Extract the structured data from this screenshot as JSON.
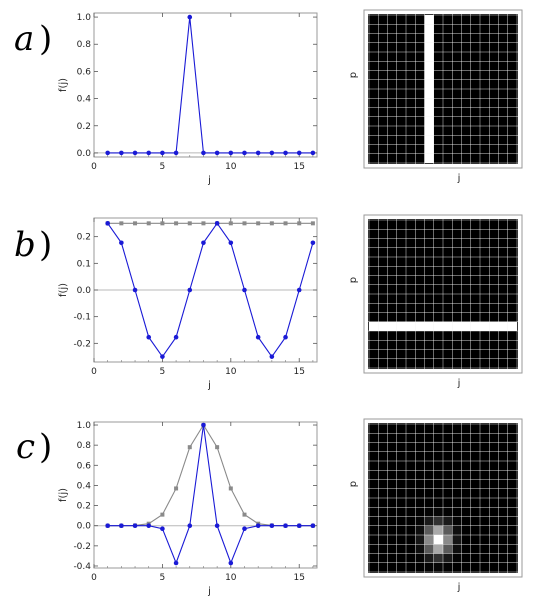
{
  "panels": [
    {
      "letter": "a",
      "paren": ")"
    },
    {
      "letter": "b",
      "paren": ")"
    },
    {
      "letter": "c",
      "paren": ")"
    }
  ],
  "colors": {
    "blue": "#1a1ad6",
    "gray": "#8a8a8a",
    "zero_line": "#b8b8b8",
    "frame": "#9a9a9a",
    "matrix_bg": "#000000",
    "matrix_grid": "#ffffff"
  },
  "chart_data": [
    {
      "type": "line",
      "panel": "a",
      "xlabel": "j",
      "ylabel": "f(j)",
      "xlim": [
        0,
        16.3
      ],
      "ylim": [
        -0.03,
        1.03
      ],
      "xticks": [
        0,
        5,
        10,
        15
      ],
      "yticks": [
        0.0,
        0.2,
        0.4,
        0.6,
        0.8,
        1.0
      ],
      "ytick_labels": [
        "0.0",
        "0.2",
        "0.4",
        "0.6",
        "0.8",
        "1.0"
      ],
      "series": [
        {
          "color": "blue",
          "x": [
            1,
            2,
            3,
            4,
            5,
            6,
            7,
            8,
            9,
            10,
            11,
            12,
            13,
            14,
            15,
            16
          ],
          "y": [
            0,
            0,
            0,
            0,
            0,
            0,
            1,
            0,
            0,
            0,
            0,
            0,
            0,
            0,
            0,
            0
          ]
        }
      ]
    },
    {
      "type": "line",
      "panel": "b",
      "xlabel": "j",
      "ylabel": "f(j)",
      "xlim": [
        0,
        16.3
      ],
      "ylim": [
        -0.27,
        0.27
      ],
      "xticks": [
        0,
        5,
        10,
        15
      ],
      "yticks": [
        -0.2,
        -0.1,
        0.0,
        0.1,
        0.2
      ],
      "ytick_labels": [
        "-0.2",
        "-0.1",
        "0.0",
        "0.1",
        "0.2"
      ],
      "series": [
        {
          "color": "gray",
          "x": [
            1,
            2,
            3,
            4,
            5,
            6,
            7,
            8,
            9,
            10,
            11,
            12,
            13,
            14,
            15,
            16
          ],
          "y": [
            0.25,
            0.25,
            0.25,
            0.25,
            0.25,
            0.25,
            0.25,
            0.25,
            0.25,
            0.25,
            0.25,
            0.25,
            0.25,
            0.25,
            0.25,
            0.25
          ]
        },
        {
          "color": "blue",
          "x": [
            1,
            2,
            3,
            4,
            5,
            6,
            7,
            8,
            9,
            10,
            11,
            12,
            13,
            14,
            15,
            16
          ],
          "y": [
            0.25,
            0.177,
            0,
            -0.177,
            -0.25,
            -0.177,
            0,
            0.177,
            0.25,
            0.177,
            0,
            -0.177,
            -0.25,
            -0.177,
            0,
            0.177
          ]
        }
      ]
    },
    {
      "type": "line",
      "panel": "c",
      "xlabel": "j",
      "ylabel": "f(j)",
      "xlim": [
        0,
        16.3
      ],
      "ylim": [
        -0.42,
        1.03
      ],
      "xticks": [
        0,
        5,
        10,
        15
      ],
      "yticks": [
        -0.4,
        -0.2,
        0.0,
        0.2,
        0.4,
        0.6,
        0.8,
        1.0
      ],
      "ytick_labels": [
        "-0.4",
        "-0.2",
        "0.0",
        "0.2",
        "0.4",
        "0.6",
        "0.8",
        "1.0"
      ],
      "series": [
        {
          "color": "gray",
          "x": [
            1,
            2,
            3,
            4,
            5,
            6,
            7,
            8,
            9,
            10,
            11,
            12,
            13,
            14,
            15,
            16
          ],
          "y": [
            0,
            0,
            0.003,
            0.02,
            0.11,
            0.37,
            0.78,
            1.0,
            0.78,
            0.37,
            0.11,
            0.02,
            0.003,
            0,
            0,
            0
          ]
        },
        {
          "color": "blue",
          "x": [
            1,
            2,
            3,
            4,
            5,
            6,
            7,
            8,
            9,
            10,
            11,
            12,
            13,
            14,
            15,
            16
          ],
          "y": [
            0,
            0,
            0,
            0,
            -0.03,
            -0.37,
            0,
            1.0,
            0,
            -0.37,
            -0.03,
            0,
            0,
            0,
            0,
            0
          ]
        }
      ]
    },
    {
      "type": "heatmap",
      "panel": "a",
      "xlabel": "j",
      "ylabel": "p",
      "size": 16,
      "description_of_values": "white column at j=7",
      "bright_column": 7
    },
    {
      "type": "heatmap",
      "panel": "b",
      "xlabel": "j",
      "ylabel": "p",
      "size": 16,
      "bright_row_from_top": 12
    },
    {
      "type": "heatmap",
      "panel": "c",
      "xlabel": "j",
      "ylabel": "p",
      "size": 16,
      "blob_center": {
        "col": 8,
        "row_from_top": 13
      },
      "blob_sigma": {
        "col": 0.9,
        "row": 1.1
      }
    }
  ]
}
